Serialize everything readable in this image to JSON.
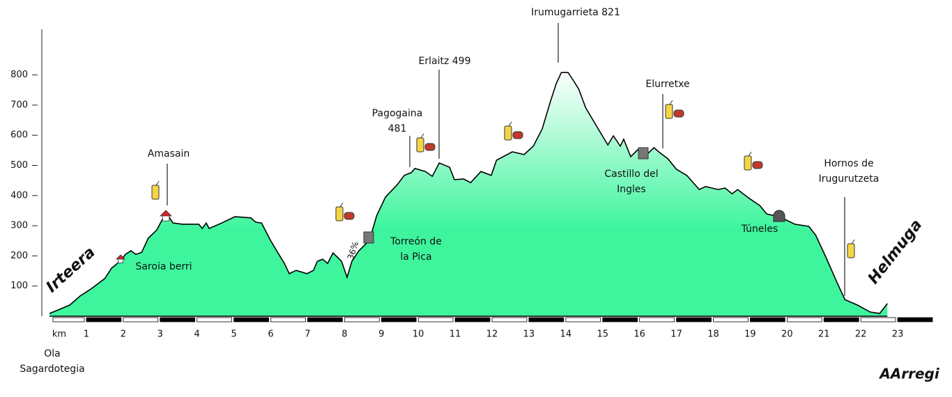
{
  "chart_data": {
    "type": "area",
    "x_axis_label": "km",
    "start_label": [
      "Ola",
      "Sagardotegia"
    ],
    "start_tag": "Irteera",
    "end_tag": "Helmuga",
    "slope_label": "36%",
    "signature": "AArregi",
    "color": "#3ef59d",
    "xlim": [
      0,
      24
    ],
    "xticks": [
      1,
      2,
      3,
      4,
      5,
      6,
      7,
      8,
      9,
      10,
      11,
      12,
      13,
      14,
      15,
      16,
      17,
      18,
      19,
      20,
      21,
      22,
      23
    ],
    "ylim": [
      0,
      950
    ],
    "yticks": [
      100,
      200,
      300,
      400,
      500,
      600,
      700,
      800
    ],
    "x": [
      0,
      0.55,
      0.83,
      1.12,
      1.5,
      1.68,
      1.91,
      2.06,
      2.21,
      2.34,
      2.5,
      2.68,
      2.91,
      3.16,
      3.35,
      3.61,
      4.05,
      4.14,
      4.25,
      4.33,
      4.67,
      5.03,
      5.46,
      5.59,
      5.75,
      5.99,
      6.22,
      6.37,
      6.5,
      6.69,
      6.98,
      7.16,
      7.26,
      7.41,
      7.54,
      7.69,
      7.92,
      8.07,
      8.2,
      8.39,
      8.68,
      8.87,
      9.11,
      9.43,
      9.62,
      9.81,
      9.91,
      10.19,
      10.38,
      10.57,
      10.85,
      10.98,
      11.23,
      11.42,
      11.7,
      11.98,
      12.12,
      12.55,
      12.87,
      13.12,
      13.36,
      13.59,
      13.74,
      13.88,
      14.06,
      14.2,
      14.35,
      14.54,
      14.88,
      15.14,
      15.29,
      15.48,
      15.57,
      15.76,
      15.95,
      16.14,
      16.39,
      16.52,
      16.77,
      17.0,
      17.28,
      17.62,
      17.79,
      18.13,
      18.32,
      18.51,
      18.66,
      18.98,
      19.26,
      19.45,
      19.83,
      20.21,
      20.59,
      20.78,
      21.06,
      21.35,
      21.57,
      21.91,
      22.25,
      22.51,
      22.72
    ],
    "values": [
      9,
      37,
      67,
      90,
      125,
      159,
      182,
      205,
      217,
      205,
      212,
      259,
      286,
      344,
      309,
      305,
      305,
      291,
      309,
      291,
      309,
      330,
      326,
      312,
      309,
      252,
      205,
      175,
      141,
      152,
      141,
      152,
      182,
      189,
      175,
      210,
      182,
      129,
      182,
      217,
      252,
      333,
      395,
      436,
      467,
      476,
      490,
      480,
      464,
      508,
      494,
      453,
      455,
      443,
      480,
      467,
      517,
      545,
      536,
      564,
      621,
      714,
      771,
      808,
      808,
      783,
      753,
      691,
      621,
      568,
      598,
      564,
      587,
      529,
      552,
      529,
      559,
      545,
      522,
      487,
      467,
      420,
      430,
      420,
      425,
      406,
      420,
      390,
      367,
      339,
      328,
      305,
      298,
      268,
      194,
      113,
      55,
      37,
      14,
      9,
      42
    ],
    "annotations": [
      [
        "Irumugarrieta 821"
      ],
      [
        "Erlaitz 499"
      ],
      [
        "Pagogaina",
        "481"
      ],
      [
        "Amasain"
      ],
      [
        "Saroia berri"
      ],
      [
        "Torreón de",
        "la Pica"
      ],
      [
        "Castillo del",
        "Ingles"
      ],
      [
        "Elurretxe"
      ],
      [
        "Túneles"
      ],
      [
        "Hornos de",
        "Irugurutzeta"
      ]
    ]
  }
}
